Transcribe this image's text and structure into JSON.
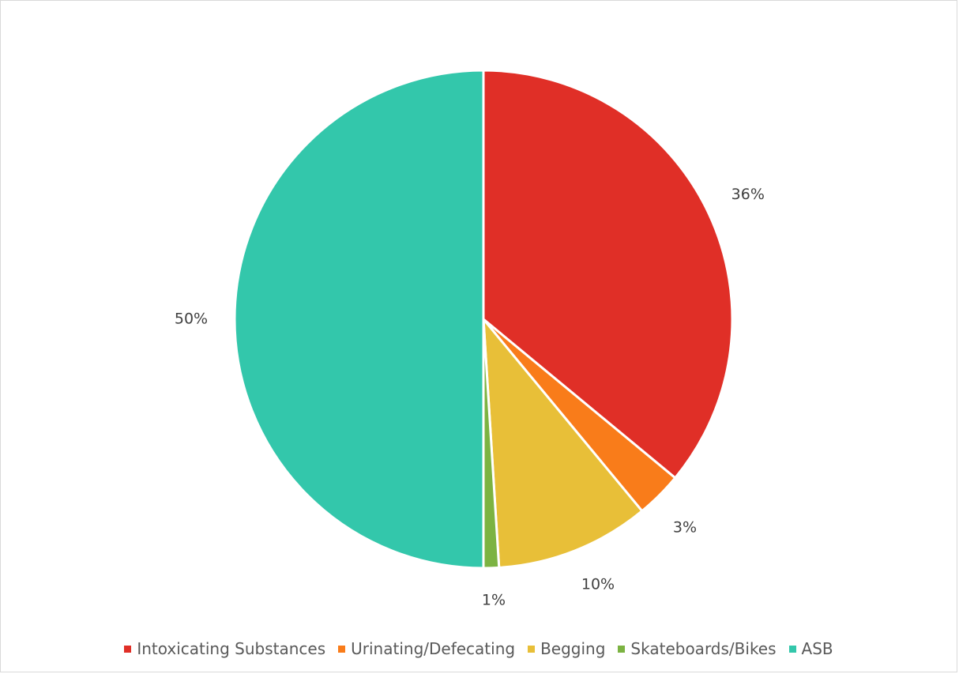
{
  "chart_data": {
    "type": "pie",
    "title": "",
    "categories": [
      "Intoxicating Substances",
      "Urinating/Defecating",
      "Begging",
      "Skateboards/Bikes",
      "ASB"
    ],
    "values": [
      36,
      3,
      10,
      1,
      50
    ],
    "labels": [
      "36%",
      "3%",
      "10%",
      "1%",
      "50%"
    ],
    "colors": [
      "#e02f27",
      "#f97c1a",
      "#e8bf38",
      "#7cb342",
      "#33c7ab"
    ],
    "start_angle_deg": 0,
    "direction": "clockwise",
    "legend_position": "bottom"
  },
  "legend": {
    "items": [
      {
        "label": "Intoxicating Substances",
        "color": "#e02f27"
      },
      {
        "label": "Urinating/Defecating",
        "color": "#f97c1a"
      },
      {
        "label": "Begging",
        "color": "#e8bf38"
      },
      {
        "label": "Skateboards/Bikes",
        "color": "#7cb342"
      },
      {
        "label": "ASB",
        "color": "#33c7ab"
      }
    ]
  }
}
